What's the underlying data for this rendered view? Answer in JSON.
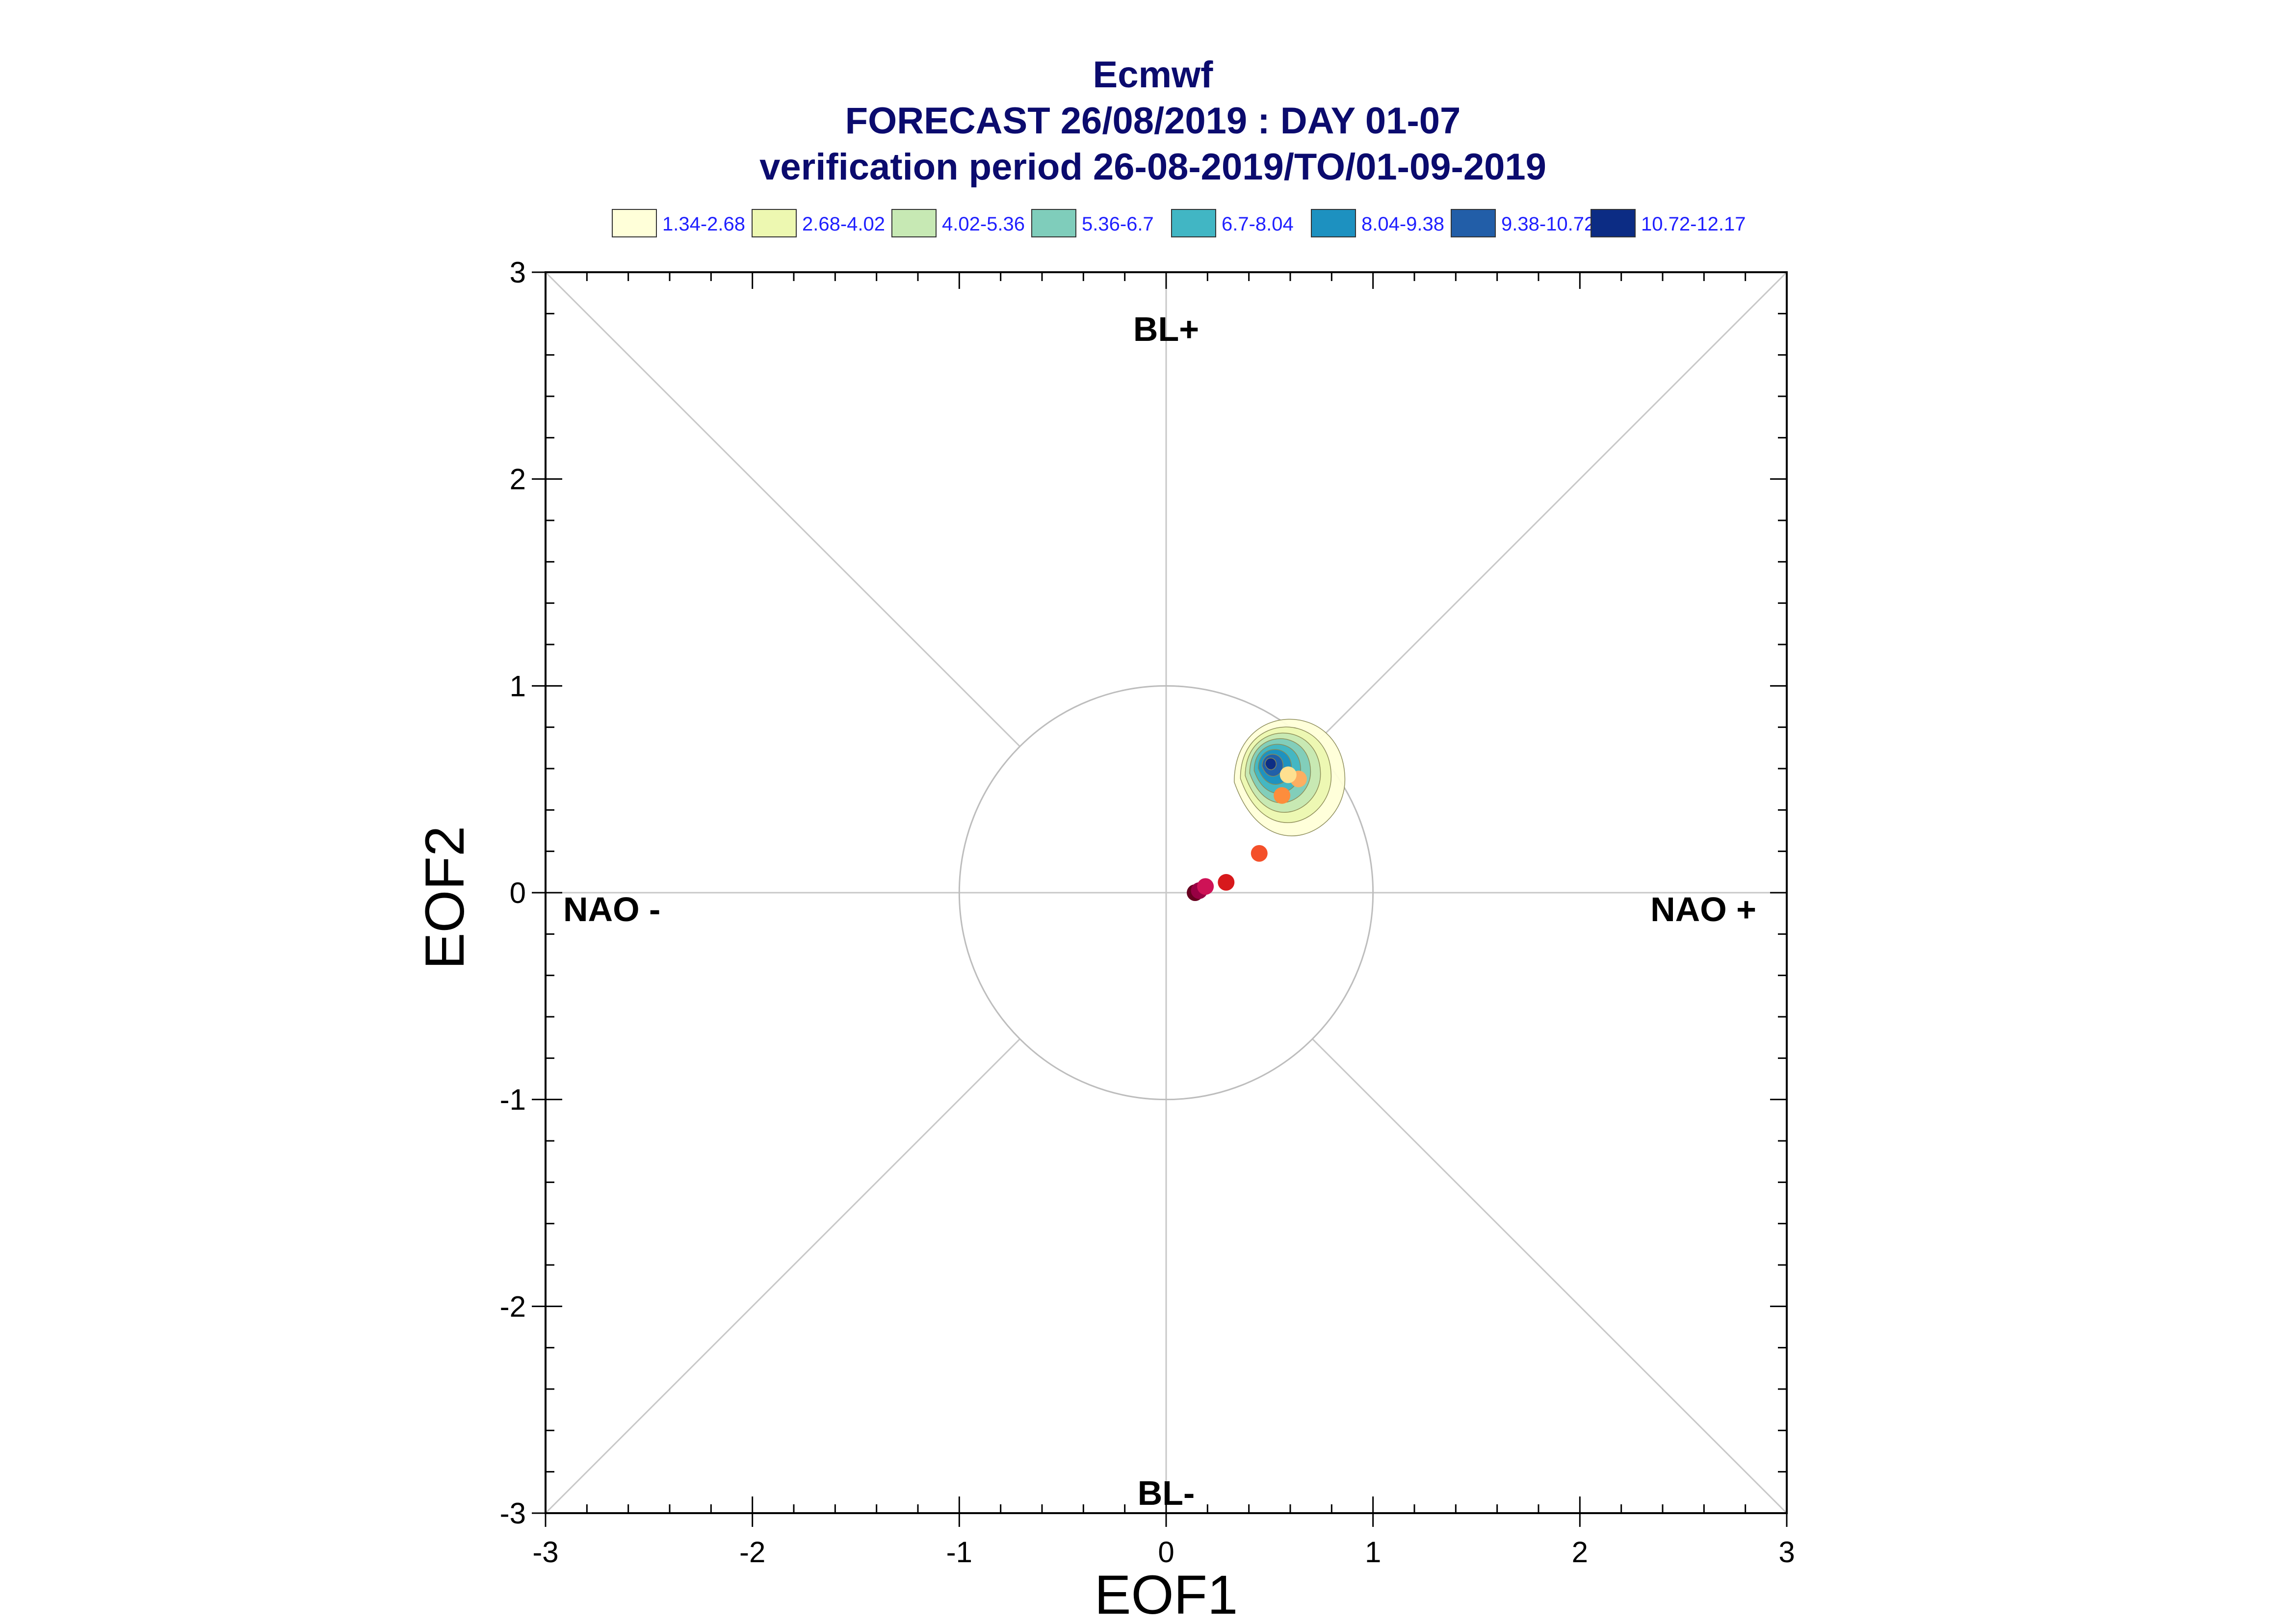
{
  "chart_data": {
    "type": "scatter",
    "title": "Ecmwf",
    "subtitle_lines": [
      "FORECAST 26/08/2019 : DAY 01-07",
      "verification period 26-08-2019/TO/01-09-2019"
    ],
    "xlabel": "EOF1",
    "ylabel": "EOF2",
    "xlim": [
      -3,
      3
    ],
    "ylim": [
      -3,
      3
    ],
    "x_ticks": [
      "-3",
      "-2",
      "-1",
      "0",
      "1",
      "2",
      "3"
    ],
    "y_ticks": [
      "-3",
      "-2",
      "-1",
      "0",
      "1",
      "2",
      "3"
    ],
    "grid": false,
    "unit_circle_radius": 1,
    "diagonals": true,
    "region_labels": {
      "top": "BL+",
      "bottom": "BL-",
      "left": "NAO -",
      "right": "NAO +"
    },
    "legend": {
      "placement": "top",
      "entries": [
        {
          "label": "1.34-2.68",
          "color": "#ffffd9"
        },
        {
          "label": "2.68-4.02",
          "color": "#edf8b1"
        },
        {
          "label": "4.02-5.36",
          "color": "#c7e9b4"
        },
        {
          "label": "5.36-6.7",
          "color": "#7fcdbb"
        },
        {
          "label": "6.7-8.04",
          "color": "#41b6c4"
        },
        {
          "label": "8.04-9.38",
          "color": "#1d91c0"
        },
        {
          "label": "9.38-10.72",
          "color": "#225ea8"
        },
        {
          "label": "10.72-12.17",
          "color": "#0c2c84"
        }
      ]
    },
    "density_center": [
      0.59,
      0.63
    ],
    "trajectory_points": [
      {
        "x": 0.14,
        "y": 0.0,
        "color": "#67001f"
      },
      {
        "x": 0.16,
        "y": 0.01,
        "color": "#980043"
      },
      {
        "x": 0.19,
        "y": 0.03,
        "color": "#ce1256"
      },
      {
        "x": 0.29,
        "y": 0.05,
        "color": "#d7191c"
      },
      {
        "x": 0.45,
        "y": 0.19,
        "color": "#f4502a"
      },
      {
        "x": 0.56,
        "y": 0.47,
        "color": "#fd8d3c"
      },
      {
        "x": 0.64,
        "y": 0.55,
        "color": "#fdae61"
      },
      {
        "x": 0.59,
        "y": 0.57,
        "color": "#fee090"
      }
    ]
  }
}
